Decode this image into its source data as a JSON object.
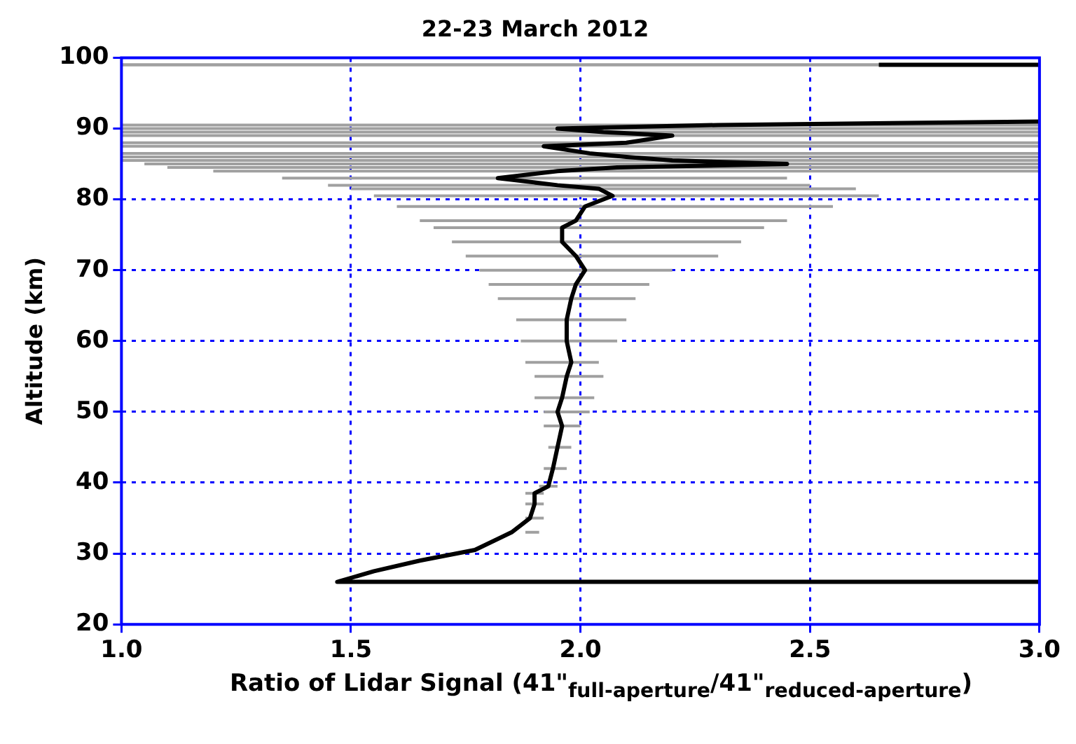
{
  "chart_data": {
    "type": "line",
    "title": "22-23 March 2012",
    "xlabel": "Ratio of Lidar Signal (41\"$_{full-aperture}$/41\"$_{reduced-aperture}$)",
    "ylabel": "Altitude (km)",
    "xlim": [
      1,
      3
    ],
    "xticks": [
      {
        "value": 1,
        "label": "1.0"
      },
      {
        "value": 1.5,
        "label": "1.5"
      },
      {
        "value": 2,
        "label": "2.0"
      },
      {
        "value": 2.5,
        "label": "2.5"
      },
      {
        "value": 3,
        "label": "3.0"
      }
    ],
    "ylim": [
      20,
      100
    ],
    "yticks": [
      20,
      30,
      40,
      50,
      60,
      70,
      80,
      90,
      100
    ],
    "grid": true,
    "legend": false,
    "marker": "none",
    "line_style": "solid",
    "series": [
      {
        "color": "#000000",
        "x": [
          3.0,
          1.47,
          1.55,
          1.65,
          1.77,
          1.85,
          1.89,
          1.9,
          1.9,
          1.93,
          1.94,
          1.95,
          1.96,
          1.95,
          1.96,
          1.97,
          1.98,
          1.97,
          1.97,
          1.98,
          1.99,
          2.01,
          1.99,
          1.96,
          1.96,
          1.99,
          2.01,
          2.07,
          2.04,
          1.95,
          1.82,
          1.95,
          2.08,
          2.45,
          2.2,
          2.1,
          2.02,
          1.92,
          2.1,
          2.2,
          2.05,
          1.95,
          2.3,
          3.0,
          null,
          2.65,
          3.0
        ],
        "values": [
          26,
          26,
          27.5,
          29,
          30.5,
          33,
          35,
          37,
          38.5,
          39.5,
          42,
          45,
          48,
          50,
          52,
          55,
          57,
          60,
          63,
          66,
          68,
          70,
          72,
          74,
          76,
          77,
          79,
          80.5,
          81.5,
          82,
          83,
          84,
          84.5,
          85,
          85.5,
          86,
          86.5,
          87.5,
          88,
          89,
          89.5,
          90,
          90.5,
          91,
          null,
          99,
          99
        ],
        "xerrors": [
          null,
          null,
          null,
          null,
          null,
          [
            1.88,
            1.91
          ],
          [
            1.88,
            1.92
          ],
          [
            1.88,
            1.92
          ],
          [
            1.88,
            1.92
          ],
          [
            1.91,
            1.95
          ],
          [
            1.92,
            1.97
          ],
          [
            1.93,
            1.98
          ],
          [
            1.92,
            2.0
          ],
          [
            1.92,
            2.02
          ],
          [
            1.9,
            2.03
          ],
          [
            1.9,
            2.05
          ],
          [
            1.88,
            2.04
          ],
          [
            1.87,
            2.08
          ],
          [
            1.86,
            2.1
          ],
          [
            1.82,
            2.12
          ],
          [
            1.8,
            2.15
          ],
          [
            1.78,
            2.2
          ],
          [
            1.75,
            2.3
          ],
          [
            1.72,
            2.35
          ],
          [
            1.68,
            2.4
          ],
          [
            1.65,
            2.45
          ],
          [
            1.6,
            2.55
          ],
          [
            1.55,
            2.65
          ],
          [
            1.5,
            2.6
          ],
          [
            1.45,
            2.5
          ],
          [
            1.35,
            2.45
          ],
          [
            1.2,
            3.0
          ],
          [
            1.1,
            3.0
          ],
          [
            1.05,
            3.0
          ],
          [
            1.0,
            3.0
          ],
          [
            1.0,
            3.0
          ],
          [
            1.0,
            3.0
          ],
          [
            1.0,
            3.0
          ],
          [
            1.0,
            3.0
          ],
          [
            1.0,
            3.0
          ],
          [
            1.0,
            3.0
          ],
          [
            1.0,
            3.0
          ],
          [
            1.0,
            3.0
          ],
          null,
          null,
          [
            1.0,
            3.0
          ],
          [
            1.0,
            3.0
          ]
        ]
      }
    ]
  }
}
